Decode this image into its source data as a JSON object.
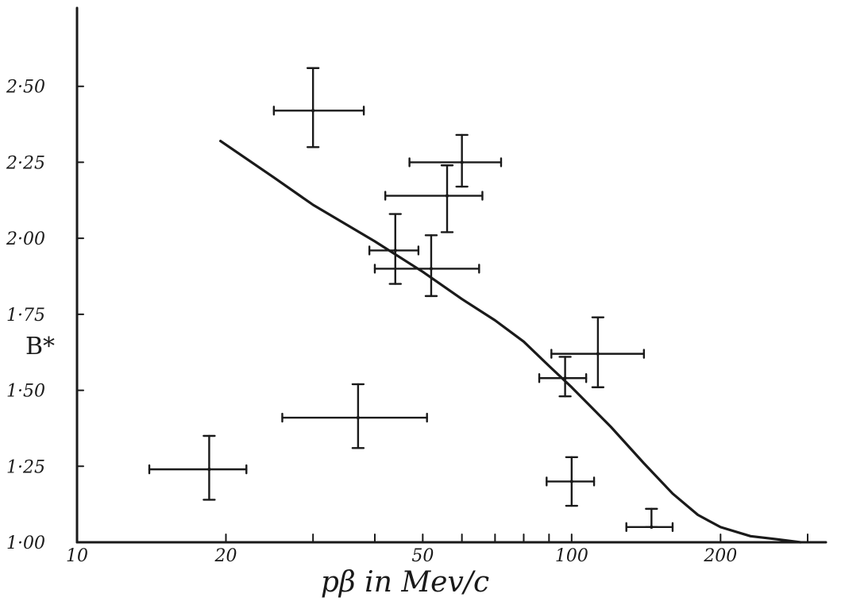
{
  "chart_data": {
    "type": "scatter",
    "title": "",
    "xlabel": "pβ in Mev/c",
    "ylabel": "B*",
    "xscale": "log",
    "xlim": [
      10,
      300
    ],
    "ylim": [
      1.0,
      2.75
    ],
    "x_ticks": [
      {
        "value": 10,
        "label": "10"
      },
      {
        "value": 20,
        "label": "20"
      },
      {
        "value": 50,
        "label": "50"
      },
      {
        "value": 100,
        "label": "100"
      },
      {
        "value": 200,
        "label": "200"
      }
    ],
    "x_minor_ticks": [
      30,
      40,
      60,
      70,
      80,
      90,
      300
    ],
    "y_ticks": [
      {
        "value": 1.0,
        "label": "1·00"
      },
      {
        "value": 1.25,
        "label": "1·25"
      },
      {
        "value": 1.5,
        "label": "1·50"
      },
      {
        "value": 1.75,
        "label": "1·75"
      },
      {
        "value": 2.0,
        "label": "2·00"
      },
      {
        "value": 2.25,
        "label": "2·25"
      },
      {
        "value": 2.5,
        "label": "2·50"
      }
    ],
    "grid": false,
    "points": [
      {
        "x": 30,
        "y": 2.42,
        "xerr": [
          25,
          38
        ],
        "yerr": [
          2.3,
          2.56
        ]
      },
      {
        "x": 60,
        "y": 2.25,
        "xerr": [
          47,
          72
        ],
        "yerr": [
          2.17,
          2.34
        ]
      },
      {
        "x": 56,
        "y": 2.14,
        "xerr": [
          42,
          66
        ],
        "yerr": [
          2.02,
          2.24
        ]
      },
      {
        "x": 44,
        "y": 1.96,
        "xerr": [
          39,
          49
        ],
        "yerr": [
          1.85,
          2.08
        ]
      },
      {
        "x": 52,
        "y": 1.9,
        "xerr": [
          40,
          65
        ],
        "yerr": [
          1.81,
          2.01
        ]
      },
      {
        "x": 113,
        "y": 1.62,
        "xerr": [
          91,
          140
        ],
        "yerr": [
          1.51,
          1.74
        ]
      },
      {
        "x": 97,
        "y": 1.54,
        "xerr": [
          86,
          107
        ],
        "yerr": [
          1.48,
          1.61
        ]
      },
      {
        "x": 37,
        "y": 1.41,
        "xerr": [
          26,
          51
        ],
        "yerr": [
          1.31,
          1.52
        ]
      },
      {
        "x": 18.5,
        "y": 1.24,
        "xerr": [
          14,
          22
        ],
        "yerr": [
          1.14,
          1.35
        ]
      },
      {
        "x": 100,
        "y": 1.2,
        "xerr": [
          89,
          111
        ],
        "yerr": [
          1.12,
          1.28
        ]
      },
      {
        "x": 145,
        "y": 1.05,
        "xerr": [
          129,
          160
        ],
        "yerr": [
          1.05,
          1.11
        ]
      }
    ],
    "curve": {
      "x": [
        19.5,
        25,
        30,
        40,
        50,
        60,
        70,
        80,
        90,
        100,
        120,
        140,
        160,
        180,
        200,
        230,
        260,
        290
      ],
      "y": [
        2.32,
        2.2,
        2.11,
        1.99,
        1.89,
        1.8,
        1.73,
        1.66,
        1.58,
        1.51,
        1.38,
        1.26,
        1.16,
        1.09,
        1.05,
        1.02,
        1.01,
        1.0
      ]
    }
  }
}
